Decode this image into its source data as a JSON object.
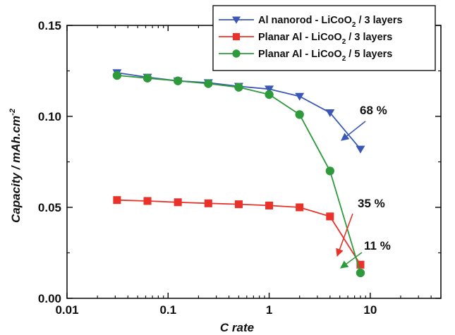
{
  "chart_data": {
    "type": "line",
    "title": "",
    "xlabel": "C rate",
    "ylabel": "Capacity / mAh.cm",
    "ylabel_sup": "-2",
    "xscale": "log",
    "xlim": [
      0.01,
      50
    ],
    "ylim": [
      0.0,
      0.15
    ],
    "xticks": [
      0.01,
      0.1,
      1,
      10
    ],
    "xtick_labels": [
      "0.01",
      "0.1",
      "1",
      "10"
    ],
    "yticks": [
      0.0,
      0.05,
      0.1,
      0.15
    ],
    "ytick_labels": [
      "0.00",
      "0.05",
      "0.10",
      "0.15"
    ],
    "grid": false,
    "legend_position": "top-right",
    "series": [
      {
        "name_parts": [
          "Al nanorod - LiCoO",
          "2",
          " / 3 layers"
        ],
        "color": "#3a57b5",
        "marker": "triangle-down",
        "x": [
          0.03125,
          0.0625,
          0.125,
          0.25,
          0.5,
          1,
          2,
          4,
          8
        ],
        "y": [
          0.124,
          0.1215,
          0.1195,
          0.1185,
          0.1165,
          0.115,
          0.111,
          0.102,
          0.082
        ]
      },
      {
        "name_parts": [
          "Planar Al - LiCoO",
          "2",
          " / 3 layers"
        ],
        "color": "#e8322a",
        "marker": "square",
        "x": [
          0.03125,
          0.0625,
          0.125,
          0.25,
          0.5,
          1,
          2,
          4,
          8
        ],
        "y": [
          0.054,
          0.0535,
          0.0528,
          0.0522,
          0.0517,
          0.051,
          0.05,
          0.045,
          0.0185
        ]
      },
      {
        "name_parts": [
          "Planar Al - LiCoO",
          "2",
          " / 5 layers"
        ],
        "color": "#2e9a3c",
        "marker": "circle",
        "x": [
          0.03125,
          0.0625,
          0.125,
          0.25,
          0.5,
          1,
          2,
          4,
          8
        ],
        "y": [
          0.1225,
          0.121,
          0.1195,
          0.118,
          0.116,
          0.112,
          0.101,
          0.07,
          0.014
        ]
      }
    ],
    "annotations": [
      {
        "text": "68 %",
        "color": "#3a57b5"
      },
      {
        "text": "35 %",
        "color": "#e8322a"
      },
      {
        "text": "11 %",
        "color": "#2e9a3c"
      }
    ]
  }
}
